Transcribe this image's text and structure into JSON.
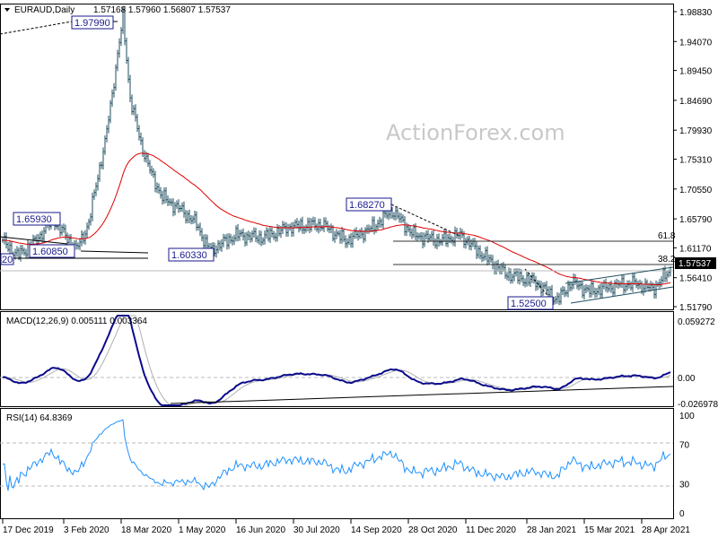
{
  "header": {
    "symbol_title": "EURAUD,Daily",
    "ohlc": "1.57168 1.57960 1.56807 1.57537"
  },
  "watermark": "ActionForex.com",
  "colors": {
    "bars": "#1f4e5f",
    "moving_average": "#e00000",
    "macd_line": "#0a0a8c",
    "macd_signal": "#b0b0b0",
    "rsi": "#1e90ff",
    "label_border": "#1a1a8c",
    "current_price_bg": "#000000"
  },
  "chart_data": [
    {
      "type": "ohlc",
      "panel": "price",
      "y_ticks": [
        "1.98830",
        "1.94070",
        "1.89450",
        "1.84690",
        "1.79930",
        "1.75310",
        "1.70550",
        "1.65790",
        "1.61170",
        "1.56410",
        "1.51790"
      ],
      "ylim": [
        1.5179,
        1.9883
      ],
      "current_price": "1.57537",
      "x_ticks": [
        "17 Dec 2019",
        "3 Feb 2020",
        "18 Mar 2020",
        "1 May 2020",
        "16 Jun 2020",
        "30 Jul 2020",
        "14 Sep 2020",
        "28 Oct 2020",
        "11 Dec 2020",
        "28 Jan 2021",
        "15 Mar 2021",
        "28 Apr 2021"
      ],
      "tick_dates": [
        "2019-12-17",
        "2020-02-03",
        "2020-03-18",
        "2020-05-01",
        "2020-06-16",
        "2020-07-30",
        "2020-09-14",
        "2020-10-28",
        "2020-12-11",
        "2021-01-28",
        "2021-03-15",
        "2021-04-28"
      ],
      "approx_closes": [
        [
          "2019-12-17",
          1.6237
        ],
        [
          "2019-12-27",
          1.599
        ],
        [
          "2020-01-10",
          1.621
        ],
        [
          "2020-01-24",
          1.657
        ],
        [
          "2020-02-12",
          1.609
        ],
        [
          "2020-02-21",
          1.65
        ],
        [
          "2020-02-27",
          1.714
        ],
        [
          "2020-03-05",
          1.778
        ],
        [
          "2020-03-19",
          1.979
        ],
        [
          "2020-03-25",
          1.85
        ],
        [
          "2020-04-02",
          1.778
        ],
        [
          "2020-04-10",
          1.728
        ],
        [
          "2020-04-20",
          1.692
        ],
        [
          "2020-05-05",
          1.671
        ],
        [
          "2020-05-15",
          1.65
        ],
        [
          "2020-05-26",
          1.6065
        ],
        [
          "2020-06-16",
          1.632
        ],
        [
          "2020-07-07",
          1.628
        ],
        [
          "2020-07-28",
          1.645
        ],
        [
          "2020-08-21",
          1.649
        ],
        [
          "2020-09-09",
          1.623
        ],
        [
          "2020-09-29",
          1.642
        ],
        [
          "2020-10-15",
          1.671
        ],
        [
          "2020-11-02",
          1.632
        ],
        [
          "2020-11-23",
          1.623
        ],
        [
          "2020-12-08",
          1.632
        ],
        [
          "2020-12-22",
          1.606
        ],
        [
          "2021-01-12",
          1.571
        ],
        [
          "2021-02-04",
          1.557
        ],
        [
          "2021-02-22",
          1.528
        ],
        [
          "2021-03-04",
          1.557
        ],
        [
          "2021-03-18",
          1.542
        ],
        [
          "2021-04-08",
          1.552
        ],
        [
          "2021-04-22",
          1.555
        ],
        [
          "2021-05-06",
          1.546
        ],
        [
          "2021-05-20",
          1.5754
        ]
      ],
      "moving_average": "red line",
      "annotations": {
        "high_1": "1.97990",
        "high_2": "1.65930",
        "low_1": "1.60850",
        "low_2": "1.60330",
        "high_3": "1.68270",
        "low_3": "1.52500",
        "left_edge": "20",
        "fib_618": "61.8",
        "fib_382": "38.2",
        "fib_618_price": 1.6223,
        "fib_382_price": 1.5851
      }
    },
    {
      "type": "line",
      "panel": "macd",
      "title": "MACD(12,26,9) 0.005111 0.003364",
      "y_ticks": [
        "0.059272",
        "0.00",
        "-0.026978"
      ],
      "ylim": [
        -0.026978,
        0.059272
      ]
    },
    {
      "type": "line",
      "panel": "rsi",
      "title": "RSI(14) 64.8369",
      "y_ticks": [
        "100",
        "70",
        "30",
        "0"
      ],
      "ylim": [
        0,
        100
      ],
      "levels": [
        70,
        30
      ]
    }
  ]
}
